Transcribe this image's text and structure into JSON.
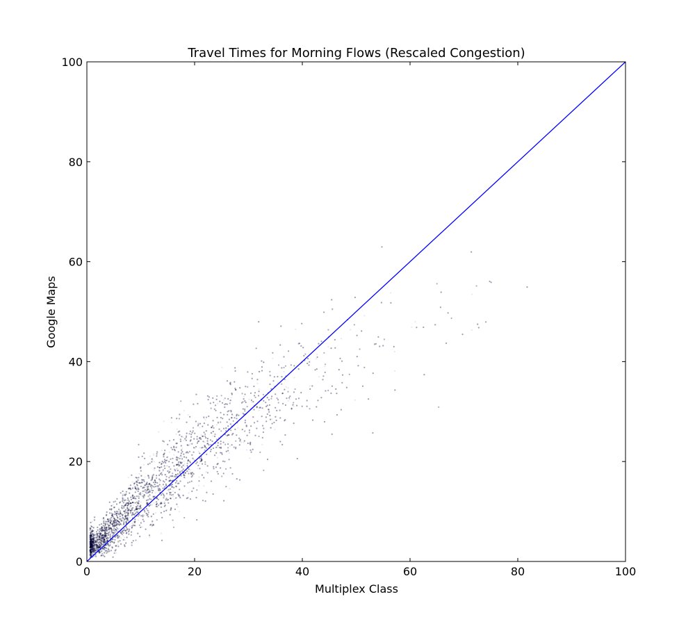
{
  "chart_data": {
    "type": "scatter",
    "title": "Travel Times for Morning Flows (Rescaled Congestion)",
    "xlabel": "Multiplex Class",
    "ylabel": "Google Maps",
    "xlim": [
      0,
      100
    ],
    "ylim": [
      0,
      100
    ],
    "xticks": [
      "0",
      "20",
      "40",
      "60",
      "80",
      "100"
    ],
    "yticks": [
      "0",
      "20",
      "40",
      "60",
      "80",
      "100"
    ],
    "grid": false,
    "point_color": "#000033",
    "reference_line": {
      "x": [
        0,
        100
      ],
      "y": [
        0,
        100
      ],
      "color": "#0000ff"
    },
    "density_profile": [
      {
        "x": 2,
        "y_mean": 3.5,
        "y_spread": 1.5,
        "weight": 1.0
      },
      {
        "x": 5,
        "y_mean": 7.0,
        "y_spread": 2.5,
        "weight": 1.0
      },
      {
        "x": 10,
        "y_mean": 12.5,
        "y_spread": 3.5,
        "weight": 0.95
      },
      {
        "x": 15,
        "y_mean": 17.0,
        "y_spread": 4.0,
        "weight": 0.85
      },
      {
        "x": 20,
        "y_mean": 21.5,
        "y_spread": 4.5,
        "weight": 0.75
      },
      {
        "x": 25,
        "y_mean": 25.5,
        "y_spread": 5.0,
        "weight": 0.62
      },
      {
        "x": 30,
        "y_mean": 29.5,
        "y_spread": 5.0,
        "weight": 0.55
      },
      {
        "x": 35,
        "y_mean": 33.0,
        "y_spread": 5.5,
        "weight": 0.45
      },
      {
        "x": 40,
        "y_mean": 36.5,
        "y_spread": 6.0,
        "weight": 0.3
      },
      {
        "x": 45,
        "y_mean": 39.0,
        "y_spread": 6.5,
        "weight": 0.18
      },
      {
        "x": 50,
        "y_mean": 41.0,
        "y_spread": 7.0,
        "weight": 0.1
      },
      {
        "x": 60,
        "y_mean": 45.0,
        "y_spread": 7.5,
        "weight": 0.05
      },
      {
        "x": 70,
        "y_mean": 50.0,
        "y_spread": 7.0,
        "weight": 0.035
      },
      {
        "x": 80,
        "y_mean": 53.0,
        "y_spread": 7.0,
        "weight": 0.015
      },
      {
        "x": 90,
        "y_mean": 56.0,
        "y_spread": 7.0,
        "weight": 0.008
      },
      {
        "x": 98,
        "y_mean": 58.0,
        "y_spread": 7.0,
        "weight": 0.004
      }
    ]
  }
}
